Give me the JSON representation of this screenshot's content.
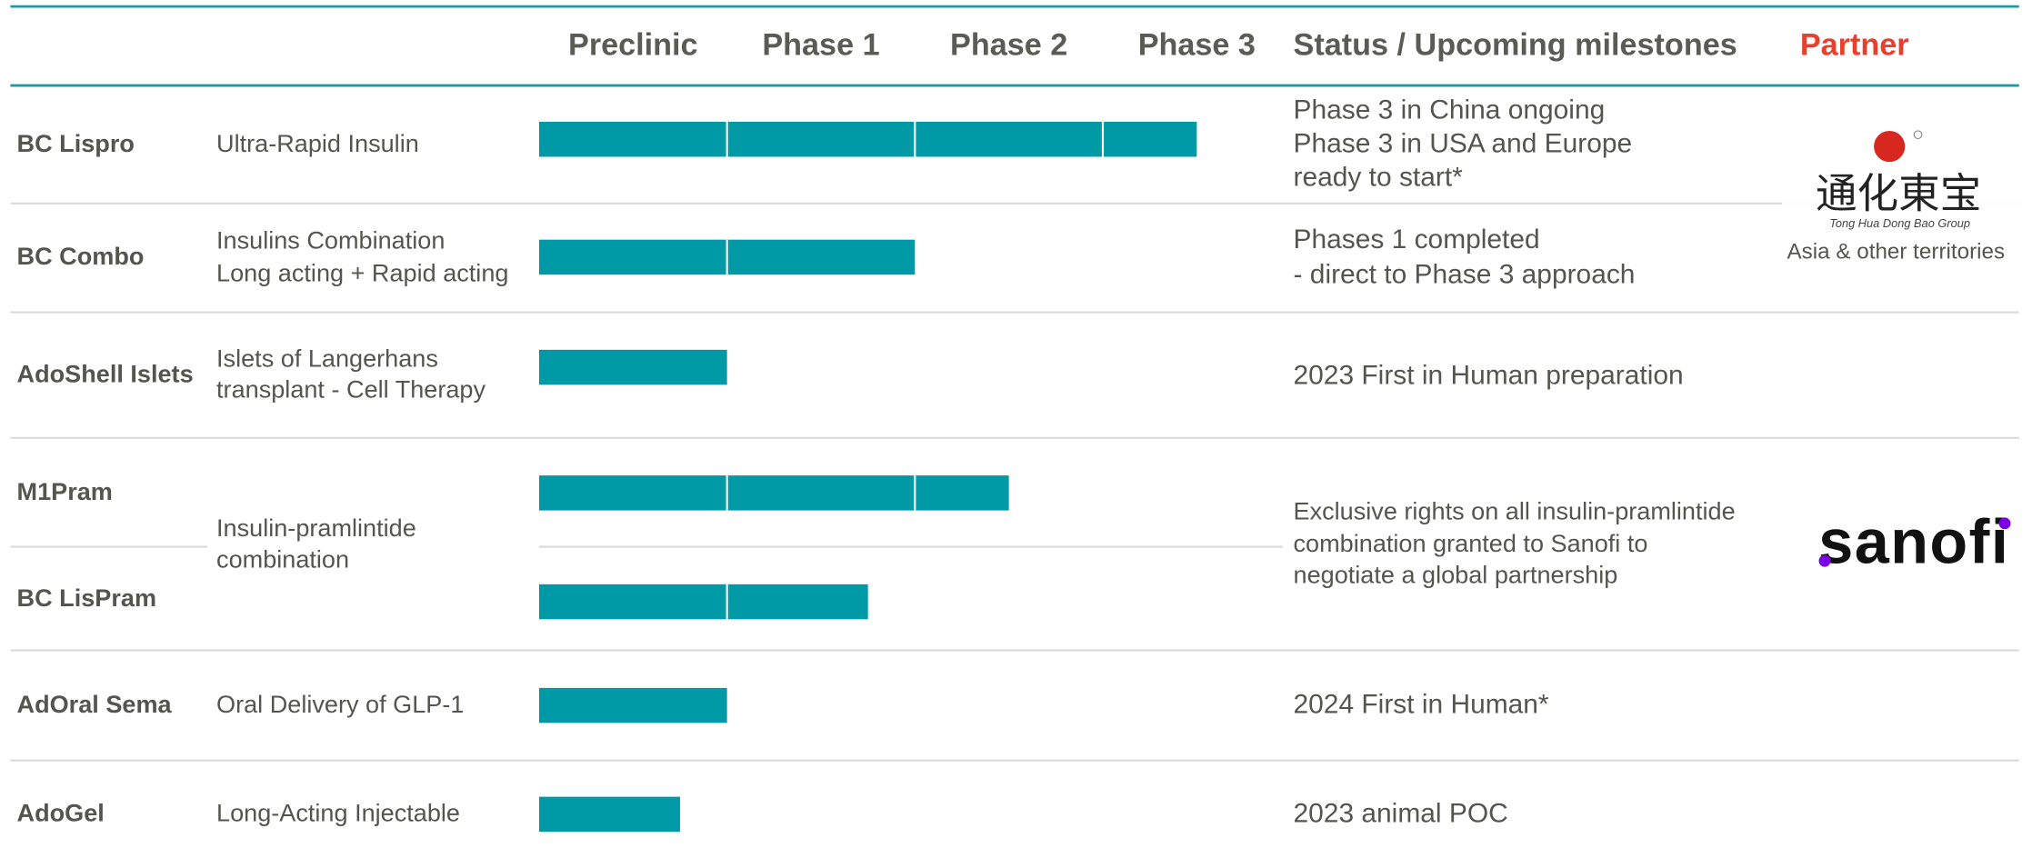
{
  "header": {
    "phases": [
      "Preclinic",
      "Phase 1",
      "Phase 2",
      "Phase 3"
    ],
    "status": "Status / Upcoming milestones",
    "partner": "Partner"
  },
  "rows": [
    {
      "programs": [
        {
          "name": "BC Lispro",
          "progress": 3.5
        }
      ],
      "description": [
        "Ultra-Rapid Insulin"
      ],
      "status": [
        "Phase 3 in China ongoing",
        "Phase 3 in USA and Europe",
        "ready to start*"
      ]
    },
    {
      "programs": [
        {
          "name": "BC Combo",
          "progress": 2
        }
      ],
      "description": [
        "Insulins Combination",
        "Long acting + Rapid acting"
      ],
      "status": [
        "Phases 1 completed",
        "- direct to Phase 3 approach"
      ]
    },
    {
      "programs": [
        {
          "name": "AdoShell Islets",
          "progress": 1
        }
      ],
      "description": [
        "Islets of Langerhans",
        "transplant - Cell Therapy"
      ],
      "status": [
        "2023 First in Human preparation"
      ]
    },
    {
      "programs": [
        {
          "name": "M1Pram",
          "progress": 2.5
        },
        {
          "name": "BC LisPram",
          "progress": 1.75
        }
      ],
      "description": [
        "Insulin-pramlintide",
        "combination"
      ],
      "status": [
        "Exclusive rights on all insulin-pramlintide",
        "combination granted to Sanofi to",
        "negotiate a global partnership"
      ]
    },
    {
      "programs": [
        {
          "name": "AdOral Sema",
          "progress": 1
        }
      ],
      "description": [
        "Oral Delivery of GLP-1"
      ],
      "status": [
        "2024 First in Human*"
      ]
    },
    {
      "programs": [
        {
          "name": "AdoGel",
          "progress": 0.75
        }
      ],
      "description": [
        "Long-Acting Injectable"
      ],
      "status": [
        "2023 animal POC"
      ]
    }
  ],
  "partners": [
    {
      "logo": "通化東宝",
      "logo_subtitle": "Tong Hua Dong Bao Group",
      "territory": "Asia & other territories"
    },
    {
      "logo": "sanofi"
    }
  ]
}
